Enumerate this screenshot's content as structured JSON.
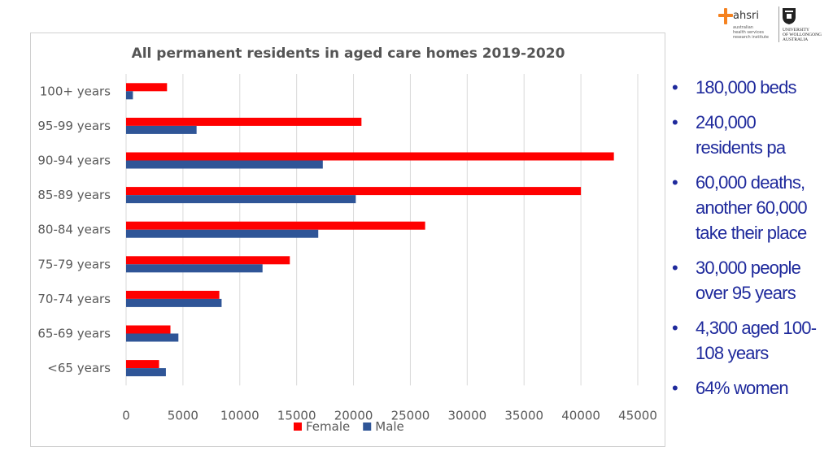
{
  "logos": {
    "ahsri": {
      "name": "ahsri",
      "subtitle": [
        "australian",
        "health services",
        "research institute"
      ],
      "accent": "#f58220"
    },
    "uow": {
      "lines": [
        "UNIVERSITY",
        "OF WOLLONGONG",
        "AUSTRALIA"
      ]
    }
  },
  "bullets": [
    "180,000 beds",
    "240,000 residents pa",
    "60,000 deaths, another 60,000 take their place",
    "30,000 people over 95 years",
    "4,300 aged 100-108 years",
    "64% women"
  ],
  "chart_data": {
    "type": "bar",
    "orientation": "horizontal",
    "title": "All permanent residents in aged care homes 2019-2020",
    "categories": [
      "100+ years",
      "95-99 years",
      "90-94 years",
      "85-89 years",
      "80-84 years",
      "75-79 years",
      "70-74 years",
      "65-69 years",
      "<65 years"
    ],
    "series": [
      {
        "name": "Female",
        "color": "#ff0000",
        "values": [
          3600,
          20700,
          42900,
          40000,
          26300,
          14400,
          8200,
          3900,
          2900
        ]
      },
      {
        "name": "Male",
        "color": "#2f5597",
        "values": [
          600,
          6200,
          17300,
          20200,
          16900,
          12000,
          8400,
          4600,
          3500
        ]
      }
    ],
    "xlim": [
      0,
      45000
    ],
    "xticks": [
      "0",
      "5000",
      "10000",
      "15000",
      "20000",
      "25000",
      "30000",
      "35000",
      "40000",
      "45000"
    ],
    "grid": true,
    "legend_position": "bottom"
  }
}
